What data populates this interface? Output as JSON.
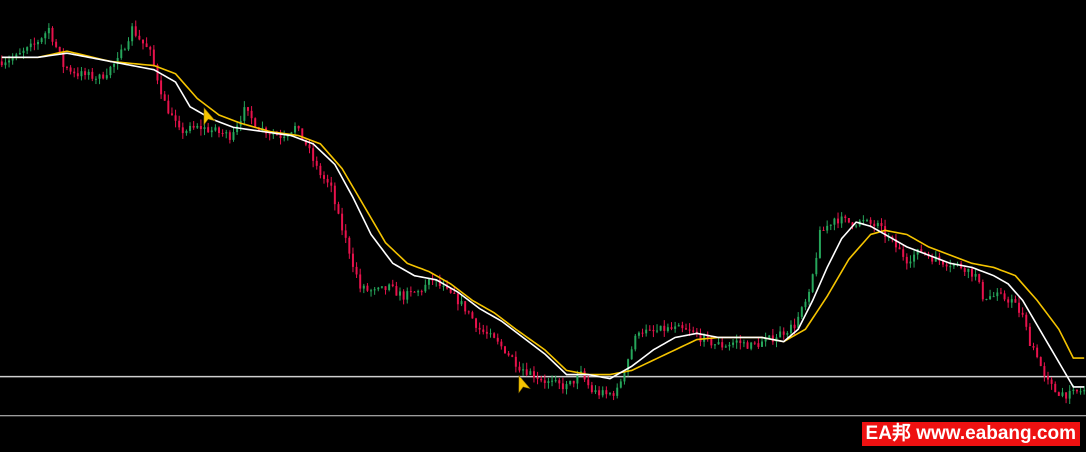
{
  "chart_data": {
    "type": "candlestick",
    "title": "",
    "xlabel": "",
    "ylabel": "",
    "grid": false,
    "background_color": "#000000",
    "bull_color": "#26a65b",
    "bear_color": "#e8124c",
    "fast_ma_color": "#ffffff",
    "slow_ma_color": "#f5c400",
    "hline_color": "#cfcfcf",
    "arrow_color": "#f5c400",
    "ylim": [
      0,
      100
    ],
    "x_count": 300,
    "price_path": [
      [
        0,
        88
      ],
      [
        5,
        89
      ],
      [
        10,
        92
      ],
      [
        14,
        96
      ],
      [
        18,
        87
      ],
      [
        22,
        85
      ],
      [
        28,
        84
      ],
      [
        33,
        88
      ],
      [
        37,
        96
      ],
      [
        42,
        90
      ],
      [
        46,
        78
      ],
      [
        50,
        71
      ],
      [
        56,
        72
      ],
      [
        60,
        71
      ],
      [
        64,
        70
      ],
      [
        66,
        73
      ],
      [
        68,
        76
      ],
      [
        72,
        72
      ],
      [
        78,
        70
      ],
      [
        82,
        72
      ],
      [
        85,
        68
      ],
      [
        88,
        62
      ],
      [
        92,
        57
      ],
      [
        94,
        50
      ],
      [
        97,
        42
      ],
      [
        100,
        33
      ],
      [
        104,
        32
      ],
      [
        108,
        33
      ],
      [
        112,
        31
      ],
      [
        116,
        32
      ],
      [
        120,
        35
      ],
      [
        124,
        32
      ],
      [
        127,
        30
      ],
      [
        130,
        27
      ],
      [
        133,
        23
      ],
      [
        136,
        21
      ],
      [
        140,
        18
      ],
      [
        144,
        14
      ],
      [
        148,
        12
      ],
      [
        152,
        10
      ],
      [
        157,
        9
      ],
      [
        161,
        12
      ],
      [
        164,
        8
      ],
      [
        168,
        7
      ],
      [
        171,
        8
      ],
      [
        174,
        16
      ],
      [
        177,
        23
      ],
      [
        180,
        22
      ],
      [
        184,
        23
      ],
      [
        188,
        23
      ],
      [
        192,
        22
      ],
      [
        196,
        20
      ],
      [
        200,
        19
      ],
      [
        204,
        20
      ],
      [
        208,
        19
      ],
      [
        212,
        20
      ],
      [
        216,
        22
      ],
      [
        220,
        24
      ],
      [
        224,
        31
      ],
      [
        227,
        46
      ],
      [
        231,
        50
      ],
      [
        235,
        49
      ],
      [
        239,
        49
      ],
      [
        243,
        48
      ],
      [
        247,
        44
      ],
      [
        251,
        40
      ],
      [
        255,
        42
      ],
      [
        259,
        40
      ],
      [
        263,
        39
      ],
      [
        267,
        38
      ],
      [
        270,
        36
      ],
      [
        272,
        31
      ],
      [
        276,
        31
      ],
      [
        280,
        30
      ],
      [
        283,
        26
      ],
      [
        285,
        20
      ],
      [
        287,
        17
      ],
      [
        289,
        11
      ],
      [
        292,
        8
      ],
      [
        296,
        7
      ],
      [
        299,
        8
      ]
    ],
    "fast_ma": [
      [
        0,
        89
      ],
      [
        10,
        89
      ],
      [
        18,
        90
      ],
      [
        30,
        88
      ],
      [
        42,
        86
      ],
      [
        48,
        83
      ],
      [
        52,
        77
      ],
      [
        58,
        74
      ],
      [
        64,
        72
      ],
      [
        72,
        71
      ],
      [
        80,
        70
      ],
      [
        86,
        68
      ],
      [
        92,
        63
      ],
      [
        97,
        55
      ],
      [
        102,
        46
      ],
      [
        108,
        39
      ],
      [
        114,
        36
      ],
      [
        120,
        35
      ],
      [
        126,
        32
      ],
      [
        132,
        28
      ],
      [
        138,
        25
      ],
      [
        144,
        21
      ],
      [
        150,
        17
      ],
      [
        156,
        12
      ],
      [
        162,
        12
      ],
      [
        168,
        11
      ],
      [
        174,
        14
      ],
      [
        180,
        18
      ],
      [
        186,
        21
      ],
      [
        192,
        22
      ],
      [
        198,
        21
      ],
      [
        204,
        21
      ],
      [
        210,
        21
      ],
      [
        216,
        20
      ],
      [
        220,
        23
      ],
      [
        224,
        30
      ],
      [
        228,
        38
      ],
      [
        232,
        45
      ],
      [
        236,
        49
      ],
      [
        240,
        48
      ],
      [
        244,
        46
      ],
      [
        250,
        43
      ],
      [
        256,
        41
      ],
      [
        262,
        39
      ],
      [
        268,
        38
      ],
      [
        274,
        36
      ],
      [
        278,
        34
      ],
      [
        282,
        30
      ],
      [
        286,
        24
      ],
      [
        292,
        15
      ],
      [
        296,
        9
      ]
    ],
    "slow_ma": [
      [
        0,
        89
      ],
      [
        10,
        89
      ],
      [
        18,
        90.5
      ],
      [
        30,
        88
      ],
      [
        42,
        87
      ],
      [
        48,
        85
      ],
      [
        54,
        79
      ],
      [
        60,
        75
      ],
      [
        66,
        73
      ],
      [
        74,
        71
      ],
      [
        82,
        70
      ],
      [
        88,
        68
      ],
      [
        94,
        62
      ],
      [
        100,
        53
      ],
      [
        106,
        44
      ],
      [
        112,
        39
      ],
      [
        118,
        37
      ],
      [
        124,
        34
      ],
      [
        130,
        30
      ],
      [
        136,
        27
      ],
      [
        142,
        23
      ],
      [
        150,
        18
      ],
      [
        156,
        13
      ],
      [
        162,
        12
      ],
      [
        168,
        12
      ],
      [
        174,
        13
      ],
      [
        180,
        15.5
      ],
      [
        186,
        18
      ],
      [
        192,
        20.5
      ],
      [
        198,
        21
      ],
      [
        204,
        21
      ],
      [
        210,
        21
      ],
      [
        216,
        20
      ],
      [
        222,
        23
      ],
      [
        228,
        31
      ],
      [
        234,
        40
      ],
      [
        240,
        46
      ],
      [
        244,
        47
      ],
      [
        250,
        46
      ],
      [
        256,
        43
      ],
      [
        262,
        41
      ],
      [
        268,
        39
      ],
      [
        274,
        38
      ],
      [
        280,
        36
      ],
      [
        286,
        30
      ],
      [
        292,
        23
      ],
      [
        296,
        16
      ]
    ],
    "horizontal_lines": [
      [
        11.5,
        1.4
      ],
      [
        2,
        1
      ]
    ],
    "signal_arrows": [
      {
        "x": 57,
        "y": 74,
        "dir": "up"
      },
      {
        "x": 144,
        "y": 9,
        "dir": "up"
      }
    ]
  },
  "watermark": {
    "text": "EA邦 www.eabang.com",
    "background": "#ee1111",
    "color": "#ffffff"
  }
}
